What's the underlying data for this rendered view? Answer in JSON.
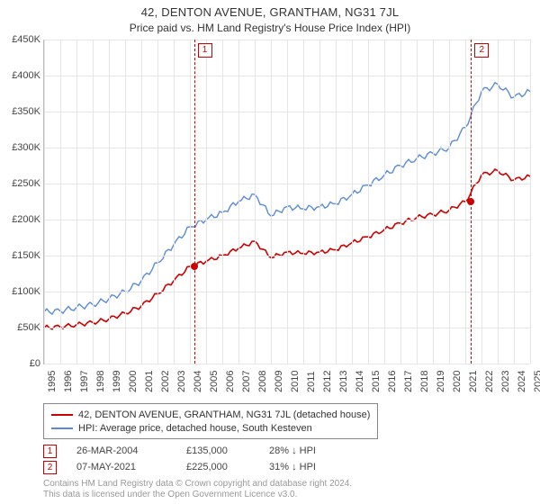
{
  "title": "42, DENTON AVENUE, GRANTHAM, NG31 7JL",
  "subtitle": "Price paid vs. HM Land Registry's House Price Index (HPI)",
  "chart": {
    "background_color": "#ffffff",
    "grid_color": "#e5e5e5",
    "axis_color": "#bbbbbb",
    "y_axis": {
      "min": 0,
      "max": 450,
      "step": 50,
      "unit_prefix": "£",
      "unit_suffix": "K",
      "ticks": [
        "£0",
        "£50K",
        "£100K",
        "£150K",
        "£200K",
        "£250K",
        "£300K",
        "£350K",
        "£400K",
        "£450K"
      ]
    },
    "x_axis": {
      "min": 1995,
      "max": 2025,
      "ticks": [
        1995,
        1996,
        1997,
        1998,
        1999,
        2000,
        2001,
        2002,
        2003,
        2004,
        2005,
        2006,
        2007,
        2008,
        2009,
        2010,
        2011,
        2012,
        2013,
        2014,
        2015,
        2016,
        2017,
        2018,
        2019,
        2020,
        2021,
        2022,
        2023,
        2024,
        2025
      ]
    },
    "series": [
      {
        "name": "hpi",
        "label": "HPI: Average price, detached house, South Kesteven",
        "color": "#5b8bd7",
        "line_width": 1.4,
        "points": [
          [
            1995,
            72
          ],
          [
            1996,
            73
          ],
          [
            1997,
            78
          ],
          [
            1998,
            82
          ],
          [
            1999,
            90
          ],
          [
            2000,
            100
          ],
          [
            2001,
            115
          ],
          [
            2002,
            140
          ],
          [
            2003,
            165
          ],
          [
            2004,
            190
          ],
          [
            2005,
            200
          ],
          [
            2006,
            210
          ],
          [
            2007,
            225
          ],
          [
            2008,
            235
          ],
          [
            2009,
            205
          ],
          [
            2010,
            218
          ],
          [
            2011,
            215
          ],
          [
            2012,
            218
          ],
          [
            2013,
            222
          ],
          [
            2014,
            235
          ],
          [
            2015,
            248
          ],
          [
            2016,
            262
          ],
          [
            2017,
            275
          ],
          [
            2018,
            285
          ],
          [
            2019,
            292
          ],
          [
            2020,
            300
          ],
          [
            2021,
            328
          ],
          [
            2022,
            378
          ],
          [
            2023,
            388
          ],
          [
            2024,
            370
          ],
          [
            2025,
            378
          ]
        ]
      },
      {
        "name": "price_paid",
        "label": "42, DENTON AVENUE, GRANTHAM, NG31 7JL (detached house)",
        "color": "#cc0000",
        "line_width": 1.6,
        "points": [
          [
            1995,
            50
          ],
          [
            1996,
            51
          ],
          [
            1997,
            54
          ],
          [
            1998,
            57
          ],
          [
            1999,
            62
          ],
          [
            2000,
            70
          ],
          [
            2001,
            80
          ],
          [
            2002,
            97
          ],
          [
            2003,
            115
          ],
          [
            2004,
            135
          ],
          [
            2005,
            142
          ],
          [
            2006,
            150
          ],
          [
            2007,
            160
          ],
          [
            2008,
            170
          ],
          [
            2009,
            147
          ],
          [
            2010,
            155
          ],
          [
            2011,
            153
          ],
          [
            2012,
            155
          ],
          [
            2013,
            158
          ],
          [
            2014,
            168
          ],
          [
            2015,
            176
          ],
          [
            2016,
            186
          ],
          [
            2017,
            195
          ],
          [
            2018,
            203
          ],
          [
            2019,
            207
          ],
          [
            2020,
            213
          ],
          [
            2021,
            225
          ],
          [
            2022,
            262
          ],
          [
            2023,
            268
          ],
          [
            2024,
            255
          ],
          [
            2025,
            260
          ]
        ]
      }
    ],
    "events": [
      {
        "num": "1",
        "year": 2004.25,
        "value": 135,
        "date": "26-MAR-2004",
        "price": "£135,000",
        "delta": "28% ↓ HPI",
        "line_color": "#cc0000",
        "marker_color": "#cc0000"
      },
      {
        "num": "2",
        "year": 2021.35,
        "value": 225,
        "date": "07-MAY-2021",
        "price": "£225,000",
        "delta": "31% ↓ HPI",
        "line_color": "#cc0000",
        "marker_color": "#cc0000"
      }
    ]
  },
  "footer": {
    "line1": "Contains HM Land Registry data © Crown copyright and database right 2024.",
    "line2": "This data is licensed under the Open Government Licence v3.0."
  }
}
